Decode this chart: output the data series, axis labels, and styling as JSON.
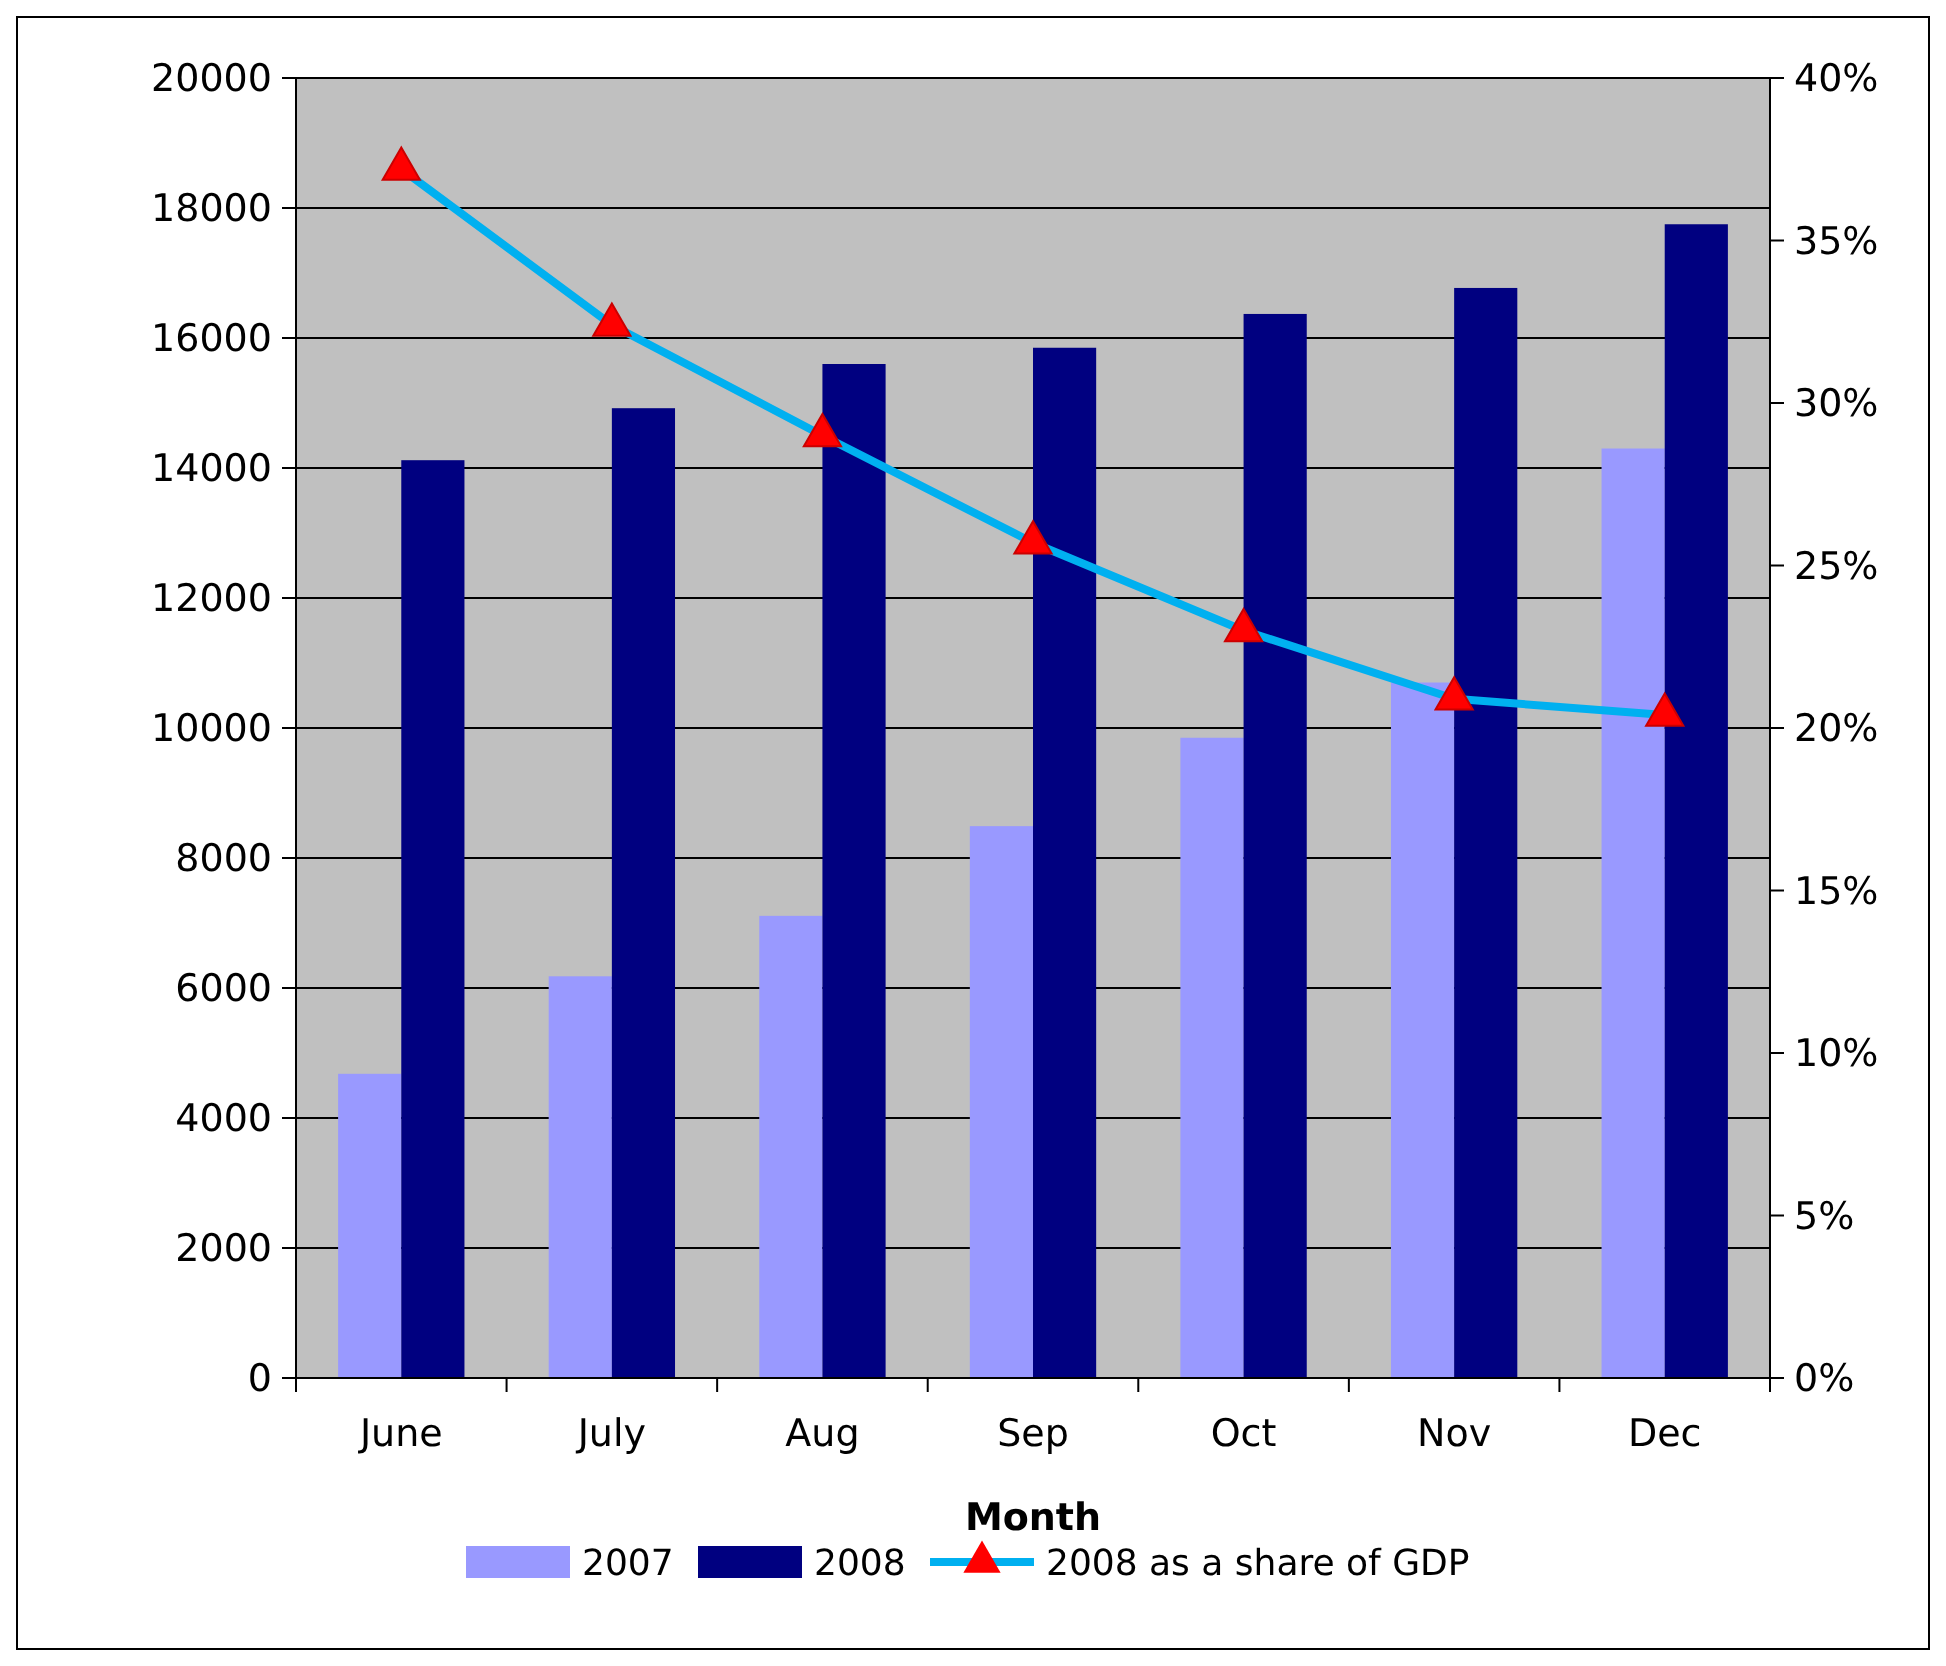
{
  "chart_data": {
    "type": "bar",
    "xlabel": "Month",
    "categories": [
      "June",
      "July",
      "Aug",
      "Sep",
      "Oct",
      "Nov",
      "Dec"
    ],
    "series": [
      {
        "name": "2007",
        "color": "#9999ff",
        "values": [
          4680,
          6180,
          7110,
          8490,
          9850,
          10700,
          14300
        ]
      },
      {
        "name": "2008",
        "color": "#000080",
        "values": [
          14120,
          14920,
          15600,
          15850,
          16370,
          16770,
          17750
        ]
      },
      {
        "name": "2008 as a share of GDP",
        "type": "line",
        "axis": "y2",
        "color": "#00b0f0",
        "marker": "triangle",
        "values": [
          37.2,
          32.4,
          29.0,
          25.7,
          23.0,
          20.9,
          20.4
        ]
      }
    ],
    "ylim": [
      0,
      20000
    ],
    "yticks": [
      0,
      2000,
      4000,
      6000,
      8000,
      10000,
      12000,
      14000,
      16000,
      18000,
      20000
    ],
    "y2lim": [
      0,
      40
    ],
    "y2ticks": [
      {
        "value": 0,
        "label": "0%"
      },
      {
        "value": 5,
        "label": "5%"
      },
      {
        "value": 10,
        "label": "10%"
      },
      {
        "value": 15,
        "label": "15%"
      },
      {
        "value": 20,
        "label": "20%"
      },
      {
        "value": 25,
        "label": "25%"
      },
      {
        "value": 30,
        "label": "30%"
      },
      {
        "value": 35,
        "label": "35%"
      },
      {
        "value": 40,
        "label": "40%"
      }
    ],
    "grid": "y",
    "legend": "bottom"
  }
}
